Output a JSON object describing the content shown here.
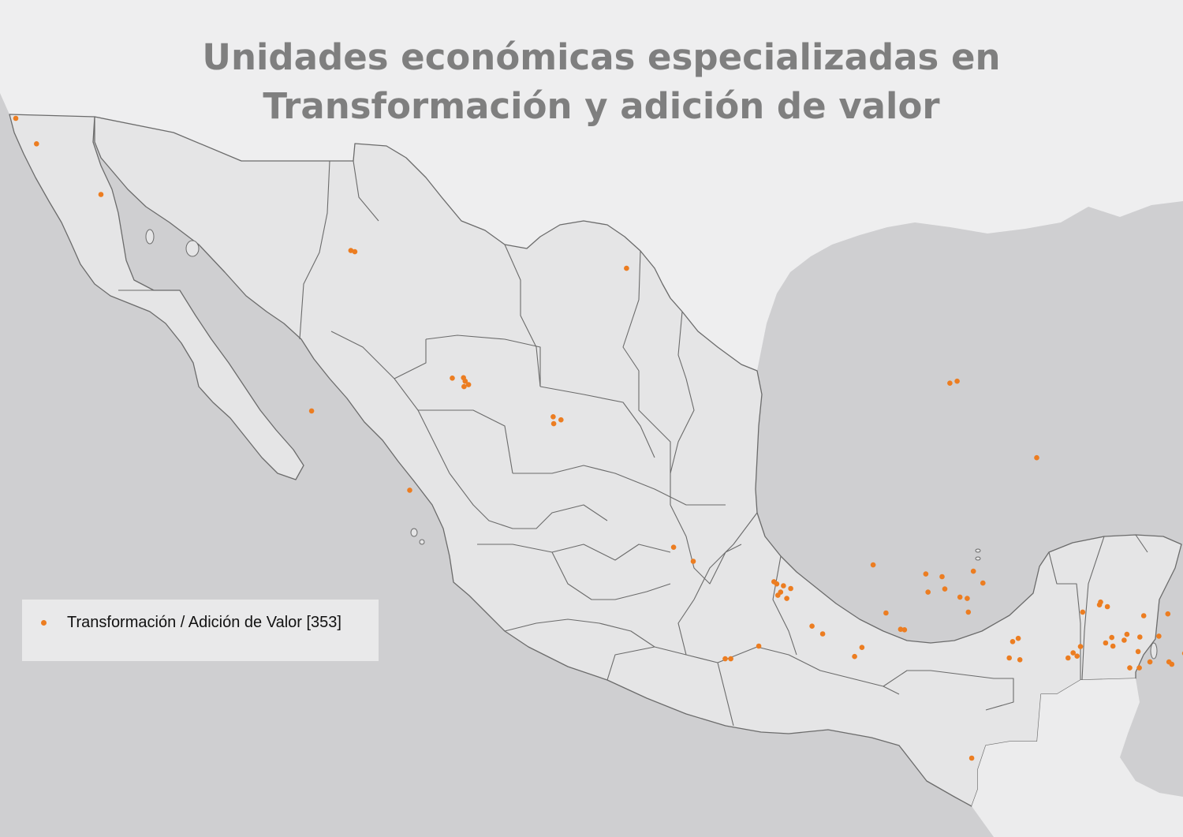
{
  "title": {
    "line1": "Unidades económicas especializadas en",
    "line2": "Transformación y adición de valor"
  },
  "legend": {
    "label": "Transformación / Adición de Valor [353]",
    "symbol": "orange-dot"
  },
  "colors": {
    "ocean": "#cfcfd1",
    "land_foreign": "#eeeeef",
    "land_mexico": "#e5e5e6",
    "border": "#6b6b6b",
    "dot": "#ec7d21",
    "title": "#7f7f7f"
  },
  "points": [
    {
      "lon": -116.98,
      "lat": 32.52
    },
    {
      "lon": -116.61,
      "lat": 31.86
    },
    {
      "lon": -115.46,
      "lat": 30.55
    },
    {
      "lon": -111.0,
      "lat": 29.1
    },
    {
      "lon": -110.93,
      "lat": 29.07
    },
    {
      "lon": -106.08,
      "lat": 28.64
    },
    {
      "lon": -108.99,
      "lat": 25.81
    },
    {
      "lon": -108.96,
      "lat": 25.72
    },
    {
      "lon": -109.19,
      "lat": 25.8
    },
    {
      "lon": -108.9,
      "lat": 25.63
    },
    {
      "lon": -108.98,
      "lat": 25.58
    },
    {
      "lon": -107.39,
      "lat": 24.8
    },
    {
      "lon": -107.25,
      "lat": 24.72
    },
    {
      "lon": -107.38,
      "lat": 24.62
    },
    {
      "lon": -111.7,
      "lat": 24.95
    },
    {
      "lon": -109.95,
      "lat": 22.9
    },
    {
      "lon": -100.31,
      "lat": 25.67
    },
    {
      "lon": -100.18,
      "lat": 25.72
    },
    {
      "lon": -98.76,
      "lat": 23.74
    },
    {
      "lon": -105.24,
      "lat": 21.51
    },
    {
      "lon": -104.89,
      "lat": 21.2
    },
    {
      "lon": -103.4,
      "lat": 20.7
    },
    {
      "lon": -103.28,
      "lat": 20.66
    },
    {
      "lon": -103.33,
      "lat": 20.52
    },
    {
      "lon": -103.15,
      "lat": 20.6
    },
    {
      "lon": -103.38,
      "lat": 20.45
    },
    {
      "lon": -103.22,
      "lat": 20.38
    },
    {
      "lon": -103.45,
      "lat": 20.75
    },
    {
      "lon": -102.77,
      "lat": 19.77
    },
    {
      "lon": -102.58,
      "lat": 19.6
    },
    {
      "lon": -102.01,
      "lat": 19.1
    },
    {
      "lon": -101.88,
      "lat": 19.3
    },
    {
      "lon": -103.72,
      "lat": 19.33
    },
    {
      "lon": -104.32,
      "lat": 19.05
    },
    {
      "lon": -104.22,
      "lat": 19.05
    },
    {
      "lon": -101.68,
      "lat": 21.12
    },
    {
      "lon": -101.19,
      "lat": 19.7
    },
    {
      "lon": -101.12,
      "lat": 19.69
    },
    {
      "lon": -100.74,
      "lat": 20.92
    },
    {
      "lon": -100.4,
      "lat": 20.59
    },
    {
      "lon": -100.0,
      "lat": 20.38
    },
    {
      "lon": -100.45,
      "lat": 20.86
    },
    {
      "lon": -100.7,
      "lat": 20.52
    },
    {
      "lon": -99.98,
      "lat": 20.08
    },
    {
      "lon": -99.89,
      "lat": 20.98
    },
    {
      "lon": -99.72,
      "lat": 20.72
    },
    {
      "lon": -101.45,
      "lat": 20.06
    },
    {
      "lon": -100.13,
      "lat": 20.41
    },
    {
      "lon": -99.09,
      "lat": 19.5
    },
    {
      "lon": -99.19,
      "lat": 19.43
    },
    {
      "lon": -99.25,
      "lat": 19.07
    },
    {
      "lon": -99.06,
      "lat": 19.03
    },
    {
      "lon": -98.2,
      "lat": 19.07
    },
    {
      "lon": -98.04,
      "lat": 19.11
    },
    {
      "lon": -98.11,
      "lat": 19.18
    },
    {
      "lon": -97.98,
      "lat": 19.32
    },
    {
      "lon": -97.53,
      "lat": 19.4
    },
    {
      "lon": -97.4,
      "lat": 19.33
    },
    {
      "lon": -97.42,
      "lat": 19.52
    },
    {
      "lon": -97.15,
      "lat": 19.59
    },
    {
      "lon": -97.2,
      "lat": 19.46
    },
    {
      "lon": -96.92,
      "lat": 19.53
    },
    {
      "lon": -96.95,
      "lat": 19.21
    },
    {
      "lon": -97.64,
      "lat": 20.24
    },
    {
      "lon": -97.94,
      "lat": 20.08
    },
    {
      "lon": -96.85,
      "lat": 20.0
    },
    {
      "lon": -97.5,
      "lat": 20.2
    },
    {
      "lon": -97.62,
      "lat": 20.3
    },
    {
      "lon": -96.42,
      "lat": 20.04
    },
    {
      "lon": -96.58,
      "lat": 19.55
    },
    {
      "lon": -96.1,
      "lat": 19.2
    },
    {
      "lon": -96.12,
      "lat": 19.17
    },
    {
      "lon": -96.35,
      "lat": 18.93
    },
    {
      "lon": -96.4,
      "lat": 18.98
    },
    {
      "lon": -96.74,
      "lat": 18.98
    },
    {
      "lon": -96.93,
      "lat": 18.85
    },
    {
      "lon": -97.1,
      "lat": 18.85
    },
    {
      "lon": -94.55,
      "lat": 18.11
    },
    {
      "lon": -99.92,
      "lat": 16.86
    },
    {
      "lon": -95.22,
      "lat": 16.33
    },
    {
      "lon": -95.19,
      "lat": 16.32
    },
    {
      "lon": -92.92,
      "lat": 17.99
    },
    {
      "lon": -93.1,
      "lat": 16.76
    },
    {
      "lon": -92.25,
      "lat": 14.91
    },
    {
      "lon": -89.6,
      "lat": 20.99
    },
    {
      "lon": -89.62,
      "lat": 20.97
    },
    {
      "lon": -89.65,
      "lat": 20.94
    },
    {
      "lon": -89.58,
      "lat": 20.93
    },
    {
      "lon": -90.52,
      "lat": 19.84
    },
    {
      "lon": -86.85,
      "lat": 21.17
    }
  ]
}
